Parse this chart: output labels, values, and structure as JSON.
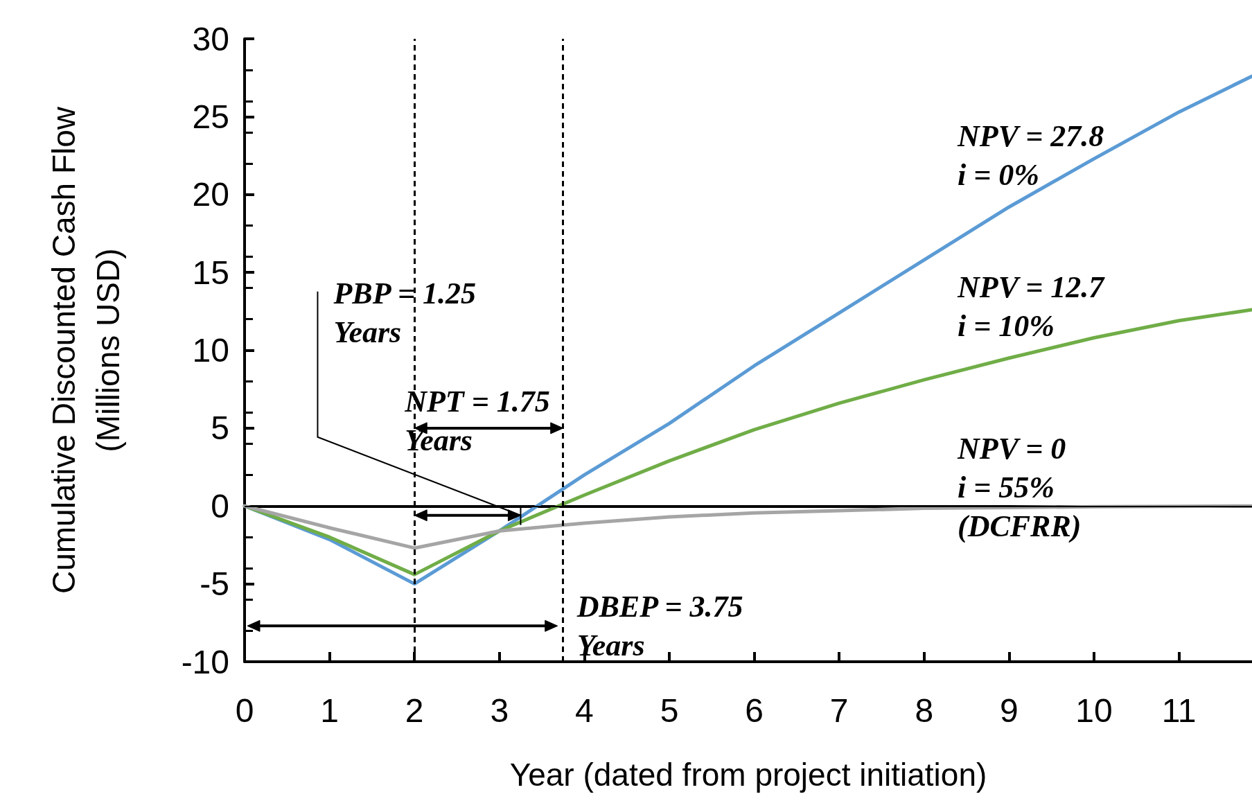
{
  "chart_data": {
    "type": "line",
    "xlabel": "Year (dated from project initiation)",
    "ylabel": "Cumulative Discounted Cash Flow\n(Millions USD)",
    "x": [
      0,
      1,
      2,
      3,
      4,
      5,
      6,
      7,
      8,
      9,
      10,
      11,
      11.86
    ],
    "series": [
      {
        "color": "#5b9bd5",
        "values": [
          0,
          -2.15,
          -5.0,
          -1.6,
          2.0,
          5.3,
          9.0,
          12.4,
          15.8,
          19.2,
          22.3,
          25.3,
          27.6
        ]
      },
      {
        "color": "#70ad47",
        "values": [
          0,
          -2.0,
          -4.4,
          -1.6,
          0.7,
          2.9,
          4.9,
          6.6,
          8.1,
          9.5,
          10.8,
          11.9,
          12.6
        ]
      },
      {
        "color": "#a5a5a5",
        "values": [
          0,
          -1.4,
          -2.7,
          -1.6,
          -1.1,
          -0.7,
          -0.45,
          -0.3,
          -0.15,
          -0.1,
          -0.05,
          -0.02,
          0
        ]
      }
    ],
    "xlim": [
      0,
      11.86
    ],
    "xticks": [
      0,
      1,
      2,
      3,
      4,
      5,
      6,
      7,
      8,
      9,
      10,
      11
    ],
    "ylim": [
      -10,
      30
    ],
    "yticks": [
      -10,
      -5,
      0,
      5,
      10,
      15,
      20,
      25,
      30
    ],
    "ref_lines": [
      {
        "axis": "y",
        "value": 0,
        "color": "#000000",
        "line_style": "solid"
      },
      {
        "axis": "x",
        "value": 2,
        "color": "#000000",
        "line_style": "dashed"
      },
      {
        "axis": "x",
        "value": 3.75,
        "color": "#000000",
        "line_style": "dashed"
      }
    ],
    "annotations": [
      {
        "text": "PBP = 1.25\nYears",
        "x": 3.25,
        "y": -0.6
      },
      {
        "text": "NPT = 1.75\nYears",
        "x": 2,
        "y": 5
      },
      {
        "text": "DBEP = 3.75\nYears",
        "x": 3.75,
        "y": -7.7
      },
      "NPV = 27.8\ni = 0%",
      "NPV = 12.7\ni = 10%",
      "NPV = 0\ni = 55%\n(DCFRR)"
    ],
    "grid": false,
    "marker": "none",
    "line_style": "solid"
  }
}
